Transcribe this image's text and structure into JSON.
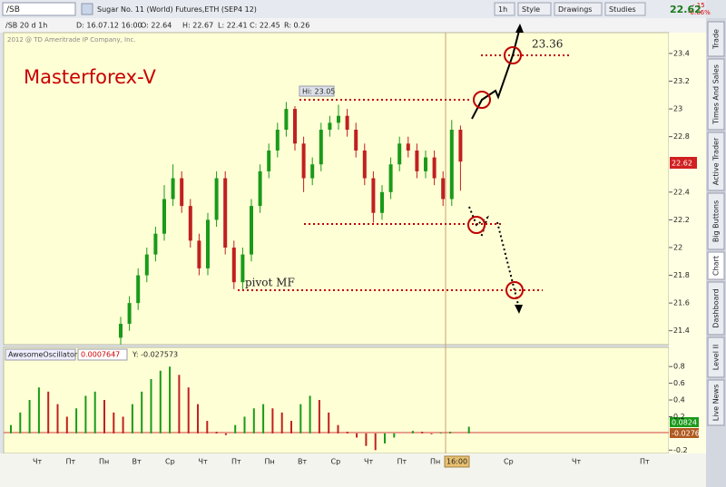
{
  "toolbar": {
    "symbol": "/SB",
    "description": "Sugar No. 11 (World) Futures,ETH (SEP4 12)",
    "buttons": [
      "1h",
      "Style",
      "Drawings",
      "Studies"
    ],
    "last": "22.62",
    "change": "-.15",
    "change_pct": "-0.66%"
  },
  "info_bar": {
    "settings": "/SB 20 d 1h",
    "fields": [
      "D: 16.07.12 16:00",
      "O: 22.64",
      "H: 22.67",
      "L: 22.41",
      "C: 22.45",
      "R: 0.26"
    ]
  },
  "price_chart": {
    "copyright": "2012 @ TD Ameritrade IP Company, Inc.",
    "title": "Masterforex-V",
    "current_price": "22.62",
    "annotations": {
      "high": "Hi: 23.05",
      "target": "23.36",
      "pivot": "pivot MF"
    },
    "ylim": [
      21.3,
      23.55
    ],
    "yticks": [
      23.4,
      23.2,
      23,
      22.8,
      22.4,
      22.2,
      22,
      21.8,
      21.6,
      21.4
    ],
    "candles": [
      [
        21.35,
        21.5,
        21.3,
        21.45
      ],
      [
        21.45,
        21.65,
        21.4,
        21.6
      ],
      [
        21.6,
        21.85,
        21.55,
        21.8
      ],
      [
        21.8,
        22.0,
        21.75,
        21.95
      ],
      [
        21.95,
        22.15,
        21.9,
        22.1
      ],
      [
        22.1,
        22.45,
        22.05,
        22.35
      ],
      [
        22.35,
        22.6,
        22.3,
        22.5
      ],
      [
        22.5,
        22.55,
        22.25,
        22.3
      ],
      [
        22.3,
        22.35,
        22.0,
        22.05
      ],
      [
        22.05,
        22.1,
        21.8,
        21.85
      ],
      [
        21.85,
        22.25,
        21.8,
        22.2
      ],
      [
        22.2,
        22.55,
        22.15,
        22.5
      ],
      [
        22.5,
        22.55,
        21.95,
        22.0
      ],
      [
        22.0,
        22.05,
        21.7,
        21.75
      ],
      [
        21.75,
        22.0,
        21.7,
        21.95
      ],
      [
        21.95,
        22.35,
        21.9,
        22.3
      ],
      [
        22.3,
        22.6,
        22.25,
        22.55
      ],
      [
        22.55,
        22.75,
        22.5,
        22.7
      ],
      [
        22.7,
        22.9,
        22.65,
        22.85
      ],
      [
        22.85,
        23.05,
        22.8,
        23.0
      ],
      [
        23.0,
        23.02,
        22.7,
        22.75
      ],
      [
        22.75,
        22.8,
        22.4,
        22.5
      ],
      [
        22.5,
        22.65,
        22.45,
        22.6
      ],
      [
        22.6,
        22.9,
        22.55,
        22.85
      ],
      [
        22.85,
        22.95,
        22.8,
        22.9
      ],
      [
        22.9,
        23.03,
        22.85,
        22.95
      ],
      [
        22.95,
        23.0,
        22.8,
        22.85
      ],
      [
        22.85,
        22.9,
        22.65,
        22.7
      ],
      [
        22.7,
        22.75,
        22.45,
        22.5
      ],
      [
        22.5,
        22.55,
        22.18,
        22.25
      ],
      [
        22.25,
        22.45,
        22.2,
        22.4
      ],
      [
        22.4,
        22.65,
        22.35,
        22.6
      ],
      [
        22.6,
        22.8,
        22.55,
        22.75
      ],
      [
        22.75,
        22.8,
        22.65,
        22.7
      ],
      [
        22.7,
        22.75,
        22.5,
        22.55
      ],
      [
        22.55,
        22.7,
        22.5,
        22.65
      ],
      [
        22.65,
        22.7,
        22.45,
        22.5
      ],
      [
        22.5,
        22.55,
        22.3,
        22.35
      ],
      [
        22.35,
        22.92,
        22.3,
        22.85
      ],
      [
        22.85,
        22.88,
        22.41,
        22.62
      ]
    ]
  },
  "oscillator": {
    "name": "AwesomeOscillator",
    "value": "0.0007647",
    "cursor": "Y: -0.027573",
    "labels": [
      "0.0824",
      "-0.0276"
    ],
    "ylim": [
      -0.24,
      1.03
    ],
    "yticks": [
      0.8,
      0.6,
      0.4,
      0.2,
      -0.2
    ],
    "values": [
      0.1,
      0.25,
      0.4,
      0.55,
      0.5,
      0.35,
      0.2,
      0.3,
      0.45,
      0.5,
      0.4,
      0.25,
      0.2,
      0.35,
      0.5,
      0.65,
      0.75,
      0.8,
      0.7,
      0.55,
      0.35,
      0.15,
      0.02,
      -0.02,
      0.1,
      0.2,
      0.3,
      0.35,
      0.3,
      0.25,
      0.15,
      0.35,
      0.45,
      0.4,
      0.25,
      0.1,
      0.02,
      -0.05,
      -0.15,
      -0.2,
      -0.12,
      -0.05,
      0.0,
      0.03,
      0.02,
      -0.01,
      0.01,
      0.02,
      0.0,
      0.08
    ]
  },
  "time_axis": {
    "labels": [
      "Чт",
      "Пт",
      "Пн",
      "Вт",
      "Ср",
      "Чт",
      "Пт",
      "Пн",
      "Вт",
      "Ср",
      "Чт",
      "Пт",
      "Пн"
    ],
    "cursor": "16:00",
    "future": [
      "Ср",
      "Чт",
      "Пт"
    ]
  },
  "side_tabs": [
    "Trade",
    "Times And Sales",
    "Active Trader",
    "Big Buttons",
    "Chart",
    "Dashboard",
    "Level II",
    "Live News"
  ]
}
